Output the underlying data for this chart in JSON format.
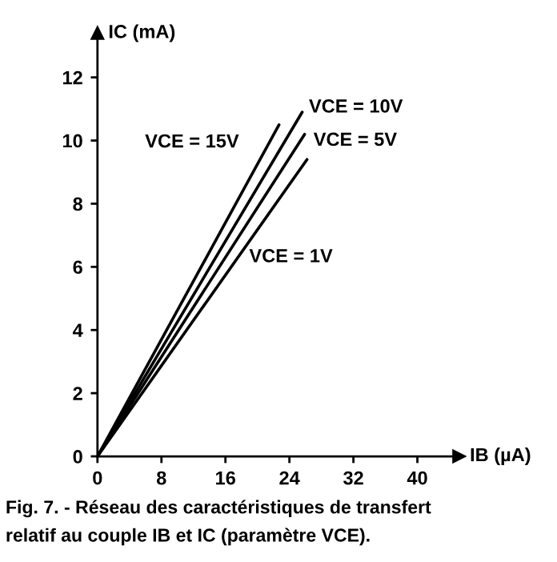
{
  "chart_data": {
    "type": "line",
    "xlabel": "IB (µA)",
    "ylabel": "IC (mA)",
    "xlim": [
      0,
      45.2
    ],
    "ylim": [
      0,
      13.4
    ],
    "xticks": [
      0,
      8,
      16,
      24,
      32,
      40
    ],
    "yticks": [
      0,
      2,
      4,
      6,
      8,
      10,
      12
    ],
    "grid": false,
    "legend": false,
    "marker": "none",
    "line_style": "solid",
    "series": [
      {
        "name": "VCE = 15V",
        "color": "#000000",
        "x": [
          0,
          22.7
        ],
        "values": [
          0,
          10.5
        ]
      },
      {
        "name": "VCE = 10V",
        "color": "#000000",
        "x": [
          0,
          25.6
        ],
        "values": [
          0,
          10.9
        ]
      },
      {
        "name": "VCE = 5V",
        "color": "#000000",
        "x": [
          0,
          25.9
        ],
        "values": [
          0,
          10.2
        ]
      },
      {
        "name": "VCE = 1V",
        "color": "#000000",
        "x": [
          0,
          26.2
        ],
        "values": [
          0,
          9.4
        ]
      }
    ],
    "annotations": [
      "Fig. 7. - Réseau des caractéristiques de transfert",
      "relatif au couple IB et IC (paramètre VCE)."
    ]
  }
}
